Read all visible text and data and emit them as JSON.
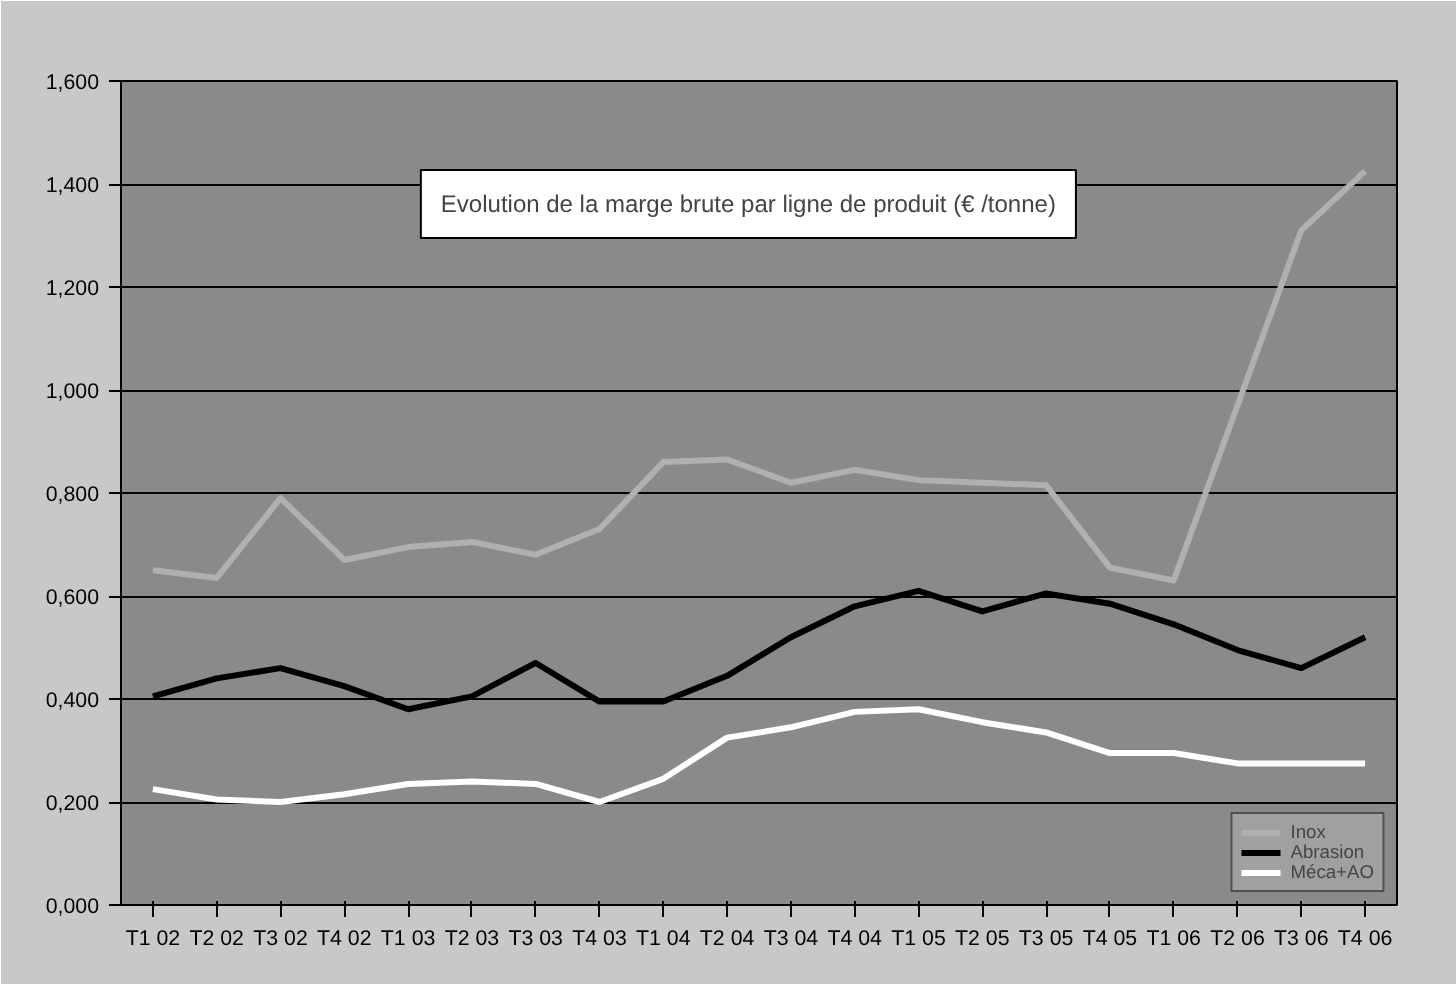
{
  "chart_data": {
    "type": "line",
    "title": "Evolution de la marge brute par ligne de produit (€ /tonne)",
    "categories": [
      "T1 02",
      "T2 02",
      "T3 02",
      "T4 02",
      "T1 03",
      "T2 03",
      "T3 03",
      "T4 03",
      "T1 04",
      "T2 04",
      "T3 04",
      "T4 04",
      "T1 05",
      "T2 05",
      "T3 05",
      "T4 05",
      "T1 06",
      "T2 06",
      "T3 06",
      "T4 06"
    ],
    "series": [
      {
        "name": "Inox",
        "color": "#b0b0b0",
        "values": [
          0.65,
          0.635,
          0.79,
          0.67,
          0.695,
          0.705,
          0.68,
          0.73,
          0.86,
          0.865,
          0.82,
          0.845,
          0.825,
          0.82,
          0.815,
          0.655,
          0.63,
          0.97,
          1.31,
          1.425
        ]
      },
      {
        "name": "Abrasion",
        "color": "#000000",
        "values": [
          0.405,
          0.44,
          0.46,
          0.425,
          0.38,
          0.405,
          0.47,
          0.395,
          0.395,
          0.445,
          0.52,
          0.58,
          0.61,
          0.57,
          0.605,
          0.585,
          0.545,
          0.495,
          0.46,
          0.52
        ]
      },
      {
        "name": "Méca+AO",
        "color": "#ffffff",
        "values": [
          0.225,
          0.205,
          0.2,
          0.215,
          0.235,
          0.24,
          0.235,
          0.2,
          0.245,
          0.325,
          0.345,
          0.375,
          0.38,
          0.355,
          0.335,
          0.295,
          0.295,
          0.275,
          0.275,
          0.275
        ]
      }
    ],
    "ylim": [
      0,
      1.6
    ],
    "yticks": [
      {
        "value": 0,
        "label": "0,000"
      },
      {
        "value": 0.2,
        "label": "0,200"
      },
      {
        "value": 0.4,
        "label": "0,400"
      },
      {
        "value": 0.6,
        "label": "0,600"
      },
      {
        "value": 0.8,
        "label": "0,800"
      },
      {
        "value": 1.0,
        "label": "1,000"
      },
      {
        "value": 1.2,
        "label": "1,200"
      },
      {
        "value": 1.4,
        "label": "1,400"
      },
      {
        "value": 1.6,
        "label": "1,600"
      }
    ],
    "grid": "y",
    "legend": "bottom right",
    "marker": "none",
    "line_style": "solid"
  }
}
